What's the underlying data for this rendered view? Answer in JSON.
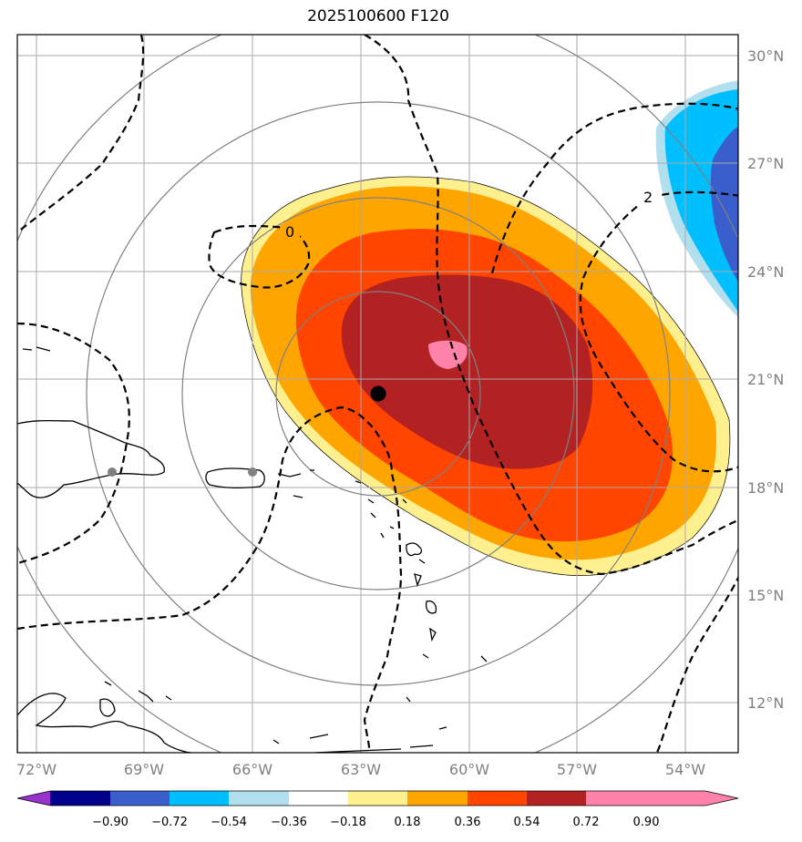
{
  "title": "2025100600 F120",
  "lon_labels": [
    "72°W",
    "69°W",
    "66°W",
    "63°W",
    "60°W",
    "57°W",
    "54°W"
  ],
  "lat_labels": [
    "30°N",
    "27°N",
    "24°N",
    "21°N",
    "18°N",
    "15°N",
    "12°N"
  ],
  "colorbar": {
    "ticks": [
      "−0.90",
      "−0.72",
      "−0.54",
      "−0.36",
      "−0.18",
      "0.18",
      "0.36",
      "0.54",
      "0.72",
      "0.90"
    ],
    "colors": [
      "#9932cc",
      "#00008b",
      "#3a5fcd",
      "#00bfff",
      "#b2dfee",
      "#ffffff",
      "#fff08f",
      "#ffa500",
      "#ff4500",
      "#b22222",
      "#ff82ab"
    ]
  },
  "contour_labels": [
    "0",
    "2"
  ],
  "center_marker": "storm-center"
}
